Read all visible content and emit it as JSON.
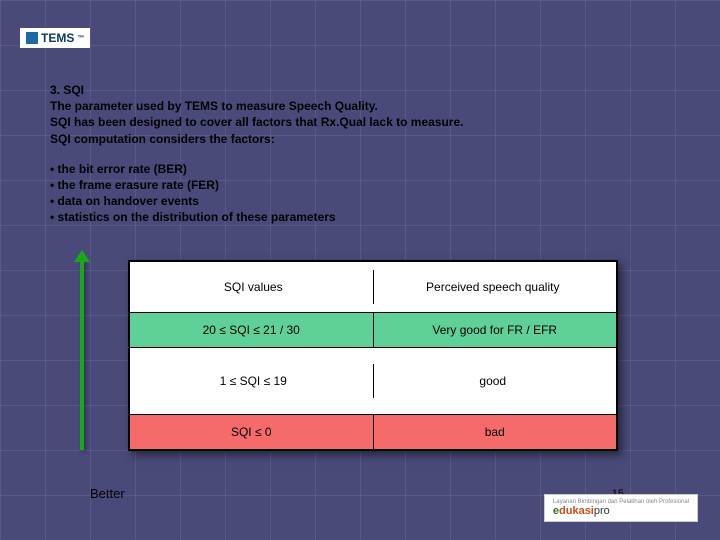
{
  "logo": {
    "tems": "TEMS",
    "tm": "™"
  },
  "heading": "3. SQI",
  "intro": [
    "The parameter used by TEMS to measure Speech Quality.",
    "SQI has been designed to cover all factors that Rx.Qual lack to measure.",
    "SQI computation considers the factors:"
  ],
  "bullets": [
    "the bit error rate (BER)",
    "the frame erasure rate (FER)",
    "data on handover events",
    "statistics on the distribution of these parameters"
  ],
  "table": {
    "header": {
      "col1": "SQI values",
      "col2": "Perceived speech quality"
    },
    "rows": [
      {
        "col1": "20 ≤ SQI ≤ 21 / 30",
        "col2": "Very good for FR / EFR",
        "bg": "green"
      },
      {
        "col1": "1 ≤ SQI ≤ 19",
        "col2": "good",
        "bg": "white"
      },
      {
        "col1": "SQI ≤ 0",
        "col2": "bad",
        "bg": "red"
      }
    ],
    "colors": {
      "green": "#5fd098",
      "white": "#ffffff",
      "red": "#f56b6b",
      "border": "#000000"
    }
  },
  "arrow": {
    "label": "Better",
    "color": "#1aa81a"
  },
  "footer": {
    "brand_prefix": "e",
    "brand_mid": "dukasi",
    "brand_suffix": "pro",
    "tagline": "Layanan Bimbingan dan Pelatihan oleh Profesional"
  },
  "page_number": "15"
}
